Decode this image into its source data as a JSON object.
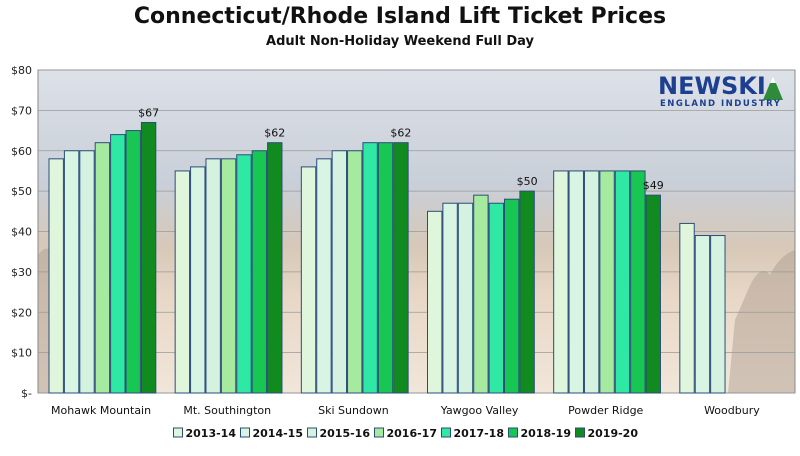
{
  "chart_data": {
    "type": "bar",
    "title": "Connecticut/Rhode Island Lift Ticket Prices",
    "subtitle": "Adult Non-Holiday Weekend Full Day",
    "categories": [
      "Mohawk Mountain",
      "Mt. Southington",
      "Ski Sundown",
      "Yawgoo Valley",
      "Powder Ridge",
      "Woodbury"
    ],
    "series": [
      {
        "name": "2013-14",
        "color": "#dff5dc",
        "values": [
          58,
          55,
          56,
          45,
          55,
          42
        ]
      },
      {
        "name": "2014-15",
        "color": "#d8f4e2",
        "values": [
          60,
          56,
          58,
          47,
          55,
          39
        ]
      },
      {
        "name": "2015-16",
        "color": "#d5f1e0",
        "values": [
          60,
          58,
          60,
          47,
          55,
          39
        ]
      },
      {
        "name": "2016-17",
        "color": "#a6eaa0",
        "values": [
          62,
          58,
          60,
          49,
          55,
          null
        ]
      },
      {
        "name": "2017-18",
        "color": "#2ee8a4",
        "values": [
          64,
          59,
          62,
          47,
          55,
          null
        ]
      },
      {
        "name": "2018-19",
        "color": "#18c654",
        "values": [
          65,
          60,
          62,
          48,
          55,
          null
        ]
      },
      {
        "name": "2019-20",
        "color": "#118a20",
        "values": [
          67,
          62,
          62,
          50,
          49,
          null
        ]
      }
    ],
    "data_labels": [
      {
        "category": "Mohawk Mountain",
        "text": "$67"
      },
      {
        "category": "Mt. Southington",
        "text": "$62"
      },
      {
        "category": "Ski Sundown",
        "text": "$62"
      },
      {
        "category": "Yawgoo Valley",
        "text": "$50"
      },
      {
        "category": "Powder Ridge",
        "text": "$49"
      }
    ],
    "y_ticks": [
      "$-",
      "$10",
      "$20",
      "$30",
      "$40",
      "$50",
      "$60",
      "$70",
      "$80"
    ],
    "ylim": [
      0,
      80
    ],
    "xlabel": "",
    "ylabel": "",
    "legend": "bottom"
  },
  "logo": {
    "line1": "NEWSKI",
    "line2": "ENGLAND INDUSTRY"
  }
}
